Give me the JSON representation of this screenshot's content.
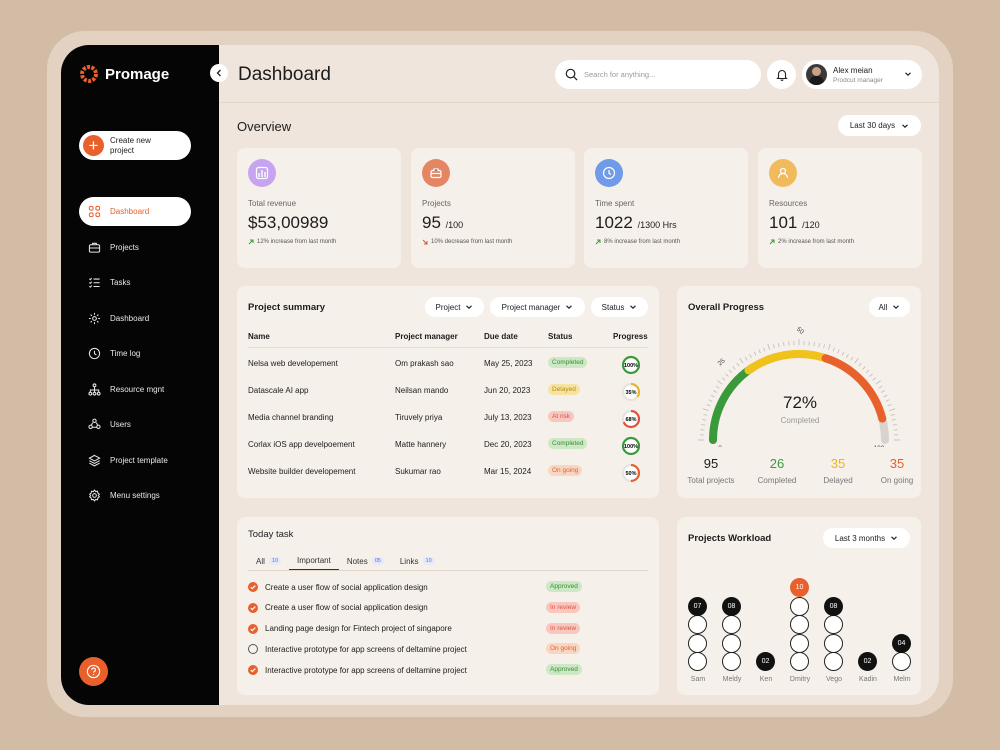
{
  "brand": {
    "name": "Promage"
  },
  "sidebar": {
    "create_label": "Create new project",
    "items": [
      {
        "label": "Dashboard",
        "icon": "grid-icon",
        "active": true
      },
      {
        "label": "Projects",
        "icon": "briefcase-icon"
      },
      {
        "label": "Tasks",
        "icon": "checklist-icon"
      },
      {
        "label": "Dashboard",
        "icon": "gear-dashboard-icon"
      },
      {
        "label": "Time log",
        "icon": "clock-icon"
      },
      {
        "label": "Resource mgnt",
        "icon": "hierarchy-icon"
      },
      {
        "label": "Users",
        "icon": "users-icon"
      },
      {
        "label": "Project template",
        "icon": "layers-icon"
      },
      {
        "label": "Menu settings",
        "icon": "gear-icon"
      }
    ]
  },
  "header": {
    "title": "Dashboard",
    "search_placeholder": "Search for anything...",
    "user_name": "Alex meian",
    "user_role": "Prodcut manager"
  },
  "overview": {
    "title": "Overview",
    "range": "Last 30 days"
  },
  "stats": [
    {
      "label": "Total revenue",
      "value": "$53,00989",
      "suffix": "",
      "change": "12% increase from last month",
      "trend": "up",
      "color": "#c7a4f0",
      "icon": "bar-chart-icon"
    },
    {
      "label": "Projects",
      "value": "95",
      "suffix": "/100",
      "change": "10% decrease from last month",
      "trend": "down",
      "color": "#e58663",
      "icon": "briefcase-icon"
    },
    {
      "label": "Time spent",
      "value": "1022",
      "suffix": "/1300 Hrs",
      "change": "8% increase from last month",
      "trend": "up",
      "color": "#6f9be8",
      "icon": "clock-icon"
    },
    {
      "label": "Resources",
      "value": "101",
      "suffix": "/120",
      "change": "2% increase from last month",
      "trend": "up",
      "color": "#f0bb5c",
      "icon": "user-icon"
    }
  ],
  "summary": {
    "title": "Project summary",
    "filters": [
      "Project",
      "Project manager",
      "Status"
    ],
    "columns": [
      "Name",
      "Project manager",
      "Due date",
      "Status",
      "Progress"
    ],
    "rows": [
      {
        "name": "Nelsa web developement",
        "manager": "Om prakash sao",
        "due": "May 25, 2023",
        "status": "Completed",
        "progress": "100%",
        "pct": 100,
        "color": "#3a9a3a"
      },
      {
        "name": "Datascale AI app",
        "manager": "Neilsan mando",
        "due": "Jun 20, 2023",
        "status": "Delayed",
        "progress": "35%",
        "pct": 35,
        "color": "#e8b820"
      },
      {
        "name": "Media channel branding",
        "manager": "Tiruvely priya",
        "due": "July 13, 2023",
        "status": "At risk",
        "progress": "68%",
        "pct": 68,
        "color": "#e0513c"
      },
      {
        "name": "Corlax iOS app develpoement",
        "manager": "Matte hannery",
        "due": "Dec 20, 2023",
        "status": "Completed",
        "progress": "100%",
        "pct": 100,
        "color": "#3a9a3a"
      },
      {
        "name": "Website builder developement",
        "manager": "Sukumar rao",
        "due": "Mar 15, 2024",
        "status": "On going",
        "progress": "50%",
        "pct": 50,
        "color": "#e8602c"
      }
    ]
  },
  "progress": {
    "title": "Overall Progress",
    "filter": "All",
    "percent": "72%",
    "percent_value": 72,
    "sub": "Completed",
    "ticks": [
      "0",
      "25",
      "50",
      "100"
    ],
    "stats": [
      {
        "value": "95",
        "label": "Total projects",
        "color": "#1c1c1c"
      },
      {
        "value": "26",
        "label": "Completed",
        "color": "#3a9a3a"
      },
      {
        "value": "35",
        "label": "Delayed",
        "color": "#e8b820"
      },
      {
        "value": "35",
        "label": "On going",
        "color": "#e8602c"
      }
    ]
  },
  "today": {
    "title": "Today task",
    "tabs": [
      {
        "label": "All",
        "count": "10"
      },
      {
        "label": "Important",
        "count": ""
      },
      {
        "label": "Notes",
        "count": "05"
      },
      {
        "label": "Links",
        "count": "10"
      }
    ],
    "tasks": [
      {
        "text": "Create a user flow of social application design",
        "status": "Approved",
        "done": true
      },
      {
        "text": "Create a user flow of social application design",
        "status": "In review",
        "done": true
      },
      {
        "text": "Landing page design for Fintech project of singapore",
        "status": "In review",
        "done": true
      },
      {
        "text": "Interactive prototype for app screens of deltamine project",
        "status": "On going",
        "done": false
      },
      {
        "text": "Interactive prototype for app screens of deltamine project",
        "status": "Approved",
        "done": true
      }
    ]
  },
  "workload": {
    "title": "Projects Workload",
    "range": "Last 3 months",
    "people": [
      {
        "name": "Sam",
        "count": "07",
        "value": 7,
        "top": "dark"
      },
      {
        "name": "Meldy",
        "count": "08",
        "value": 8,
        "top": "dark"
      },
      {
        "name": "Ken",
        "count": "02",
        "value": 2,
        "top": "dark"
      },
      {
        "name": "Dmitry",
        "count": "10",
        "value": 10,
        "top": "orange"
      },
      {
        "name": "Vego",
        "count": "08",
        "value": 8,
        "top": "dark"
      },
      {
        "name": "Kadin",
        "count": "02",
        "value": 2,
        "top": "dark"
      },
      {
        "name": "Melm",
        "count": "04",
        "value": 4,
        "top": "dark"
      }
    ]
  }
}
